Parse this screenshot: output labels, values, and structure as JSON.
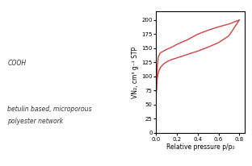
{
  "chart_data": {
    "type": "line",
    "xlabel": "Relative pressure p/p₀",
    "ylabel": "VN₂, cm³ g⁻¹ STP",
    "xlim": [
      0,
      0.85
    ],
    "ylim": [
      0,
      215
    ],
    "xticks": [
      0.0,
      0.2,
      0.4,
      0.6,
      0.8
    ],
    "yticks": [
      0,
      25,
      50,
      75,
      100,
      125,
      150,
      175,
      200
    ],
    "annotations": [
      "COOH",
      "betulin based, microporous",
      "polyester network"
    ],
    "series": [
      {
        "color": "#cc4444",
        "x": [
          0.0,
          0.005,
          0.01,
          0.02,
          0.04,
          0.07,
          0.1,
          0.15,
          0.2,
          0.25,
          0.3,
          0.35,
          0.4,
          0.5,
          0.6,
          0.7,
          0.8
        ],
        "values": [
          72,
          88,
          97,
          107,
          116,
          122,
          126,
          130,
          133,
          136,
          139,
          142,
          145,
          152,
          160,
          172,
          200
        ]
      },
      {
        "color": "#cc4444",
        "x": [
          0.8,
          0.7,
          0.6,
          0.5,
          0.4,
          0.35,
          0.3,
          0.25,
          0.2,
          0.15,
          0.1,
          0.07,
          0.04,
          0.02,
          0.01,
          0.005,
          0.0
        ],
        "values": [
          200,
          193,
          188,
          182,
          175,
          170,
          165,
          161,
          157,
          152,
          148,
          145,
          142,
          135,
          118,
          98,
          72
        ]
      }
    ]
  }
}
